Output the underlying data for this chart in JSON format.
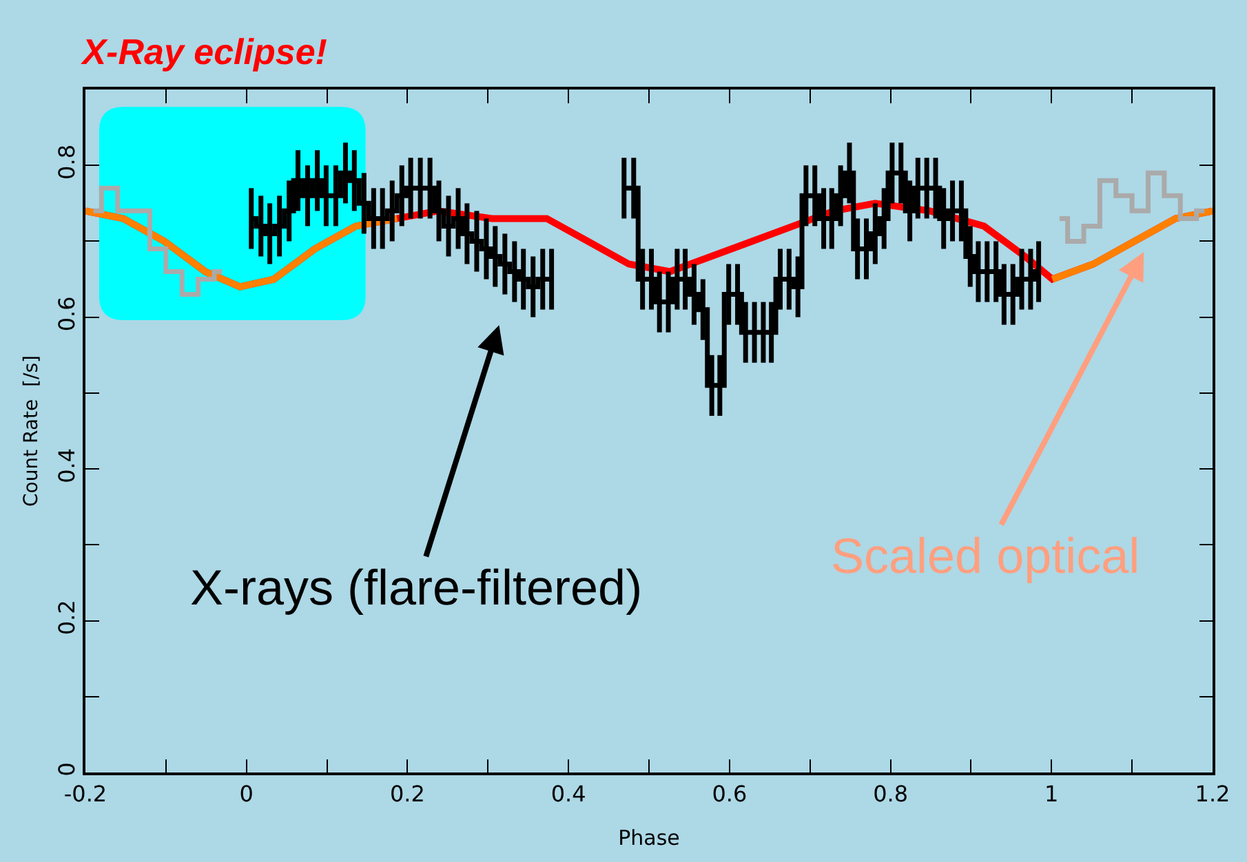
{
  "chart_data": {
    "type": "line",
    "title": "X-Ray eclipse!",
    "xlabel": "Phase",
    "ylabel": "Count Rate  [/s]",
    "xlim": [
      -0.2,
      1.2
    ],
    "ylim": [
      0,
      0.9
    ],
    "xticks": [
      -0.2,
      {
        "value": -0.1,
        "label": null
      },
      0,
      {
        "value": 0.1,
        "label": null
      },
      0.2,
      {
        "value": 0.3,
        "label": null
      },
      0.4,
      {
        "value": 0.5,
        "label": null
      },
      0.6,
      {
        "value": 0.7,
        "label": null
      },
      0.8,
      {
        "value": 0.9,
        "label": null
      },
      1,
      {
        "value": 1.1,
        "label": null
      },
      1.2
    ],
    "yticks": [
      0,
      {
        "value": 0.1,
        "label": null
      },
      0.2,
      {
        "value": 0.3,
        "label": null
      },
      0.4,
      {
        "value": 0.5,
        "label": null
      },
      0.6,
      {
        "value": 0.7,
        "label": null
      },
      0.8
    ],
    "grid": false,
    "series": [
      {
        "color": "#ff0000",
        "x": [
          -0.2,
          -0.153,
          -0.102,
          -0.051,
          -0.008,
          0.034,
          0.085,
          0.136,
          0.187,
          0.238,
          0.305,
          0.373,
          0.424,
          0.475,
          0.526,
          0.577,
          0.628,
          0.679,
          0.73,
          0.781,
          0.849,
          0.916,
          0.967,
          1.001,
          1.052,
          1.103,
          1.154,
          1.2
        ],
        "values": [
          0.74,
          0.73,
          0.7,
          0.66,
          0.64,
          0.65,
          0.69,
          0.72,
          0.73,
          0.74,
          0.73,
          0.73,
          0.7,
          0.67,
          0.66,
          0.68,
          0.7,
          0.72,
          0.74,
          0.75,
          0.74,
          0.72,
          0.68,
          0.65,
          0.67,
          0.7,
          0.73,
          0.74
        ]
      },
      {
        "color": "#ff8000",
        "x": [
          -0.2,
          -0.153,
          -0.102,
          -0.051,
          -0.008,
          0.034,
          0.085,
          0.136,
          0.187,
          null,
          1.001,
          1.052,
          1.103,
          1.154,
          1.2
        ],
        "values": [
          0.74,
          0.73,
          0.7,
          0.66,
          0.64,
          0.65,
          0.69,
          0.72,
          0.73,
          null,
          0.65,
          0.67,
          0.7,
          0.73,
          0.74
        ]
      },
      {
        "type": "step",
        "color": "#aaaaaa",
        "x": [
          -0.19,
          -0.17,
          -0.15,
          -0.13,
          -0.11,
          -0.09,
          -0.07,
          -0.05,
          -0.03,
          0.5,
          1.01,
          1.03,
          1.05,
          1.07,
          1.09,
          1.11,
          1.13,
          1.15,
          1.17,
          1.19
        ],
        "values": [
          0.74,
          0.77,
          0.74,
          0.74,
          0.69,
          0.66,
          0.63,
          0.65,
          0.66,
          null,
          0.73,
          0.7,
          0.72,
          0.78,
          0.76,
          0.74,
          0.79,
          0.76,
          0.73,
          0.74
        ]
      },
      {
        "type": "step",
        "color": "#000000",
        "x": [
          0.006,
          0.018,
          0.029,
          0.041,
          0.053,
          0.064,
          0.076,
          0.088,
          0.099,
          0.111,
          0.123,
          0.134,
          0.146,
          0.158,
          0.169,
          0.181,
          0.193,
          0.204,
          0.216,
          0.228,
          0.239,
          0.251,
          0.263,
          0.274,
          0.286,
          0.298,
          0.309,
          0.321,
          0.333,
          0.344,
          0.356,
          0.368,
          0.379,
          0.42,
          0.469,
          0.481,
          0.492,
          0.503,
          0.513,
          0.524,
          0.535,
          0.545,
          0.556,
          0.567,
          0.578,
          0.588,
          0.599,
          0.61,
          0.62,
          0.631,
          0.642,
          0.652,
          0.663,
          0.674,
          0.685,
          0.695,
          0.706,
          0.717,
          0.727,
          0.738,
          0.749,
          0.759,
          0.77,
          0.781,
          0.792,
          0.802,
          0.813,
          0.824,
          0.834,
          0.845,
          0.856,
          0.866,
          0.877,
          0.888,
          0.899,
          0.909,
          0.92,
          0.931,
          0.941,
          0.952,
          0.963,
          0.974,
          0.984
        ],
        "values": [
          0.73,
          0.72,
          0.71,
          0.72,
          0.74,
          0.78,
          0.76,
          0.78,
          0.76,
          0.76,
          0.79,
          0.78,
          0.75,
          0.73,
          0.73,
          0.74,
          0.76,
          0.77,
          0.77,
          0.77,
          0.74,
          0.72,
          0.73,
          0.71,
          0.7,
          0.69,
          0.68,
          0.67,
          0.66,
          0.65,
          0.64,
          0.65,
          0.65,
          null,
          0.77,
          0.77,
          0.65,
          0.65,
          0.62,
          0.62,
          0.65,
          0.65,
          0.63,
          0.61,
          0.51,
          0.51,
          0.63,
          0.63,
          0.58,
          0.58,
          0.58,
          0.58,
          0.65,
          0.65,
          0.64,
          0.76,
          0.76,
          0.73,
          0.73,
          0.76,
          0.79,
          0.69,
          0.69,
          0.71,
          0.73,
          0.79,
          0.79,
          0.74,
          0.77,
          0.77,
          0.77,
          0.73,
          0.74,
          0.74,
          0.68,
          0.66,
          0.66,
          0.66,
          0.63,
          0.63,
          0.65,
          0.65,
          0.66
        ],
        "errors": [
          0.04,
          0.04,
          0.04,
          0.04,
          0.04,
          0.04,
          0.04,
          0.04,
          0.04,
          0.04,
          0.04,
          0.04,
          0.04,
          0.04,
          0.04,
          0.04,
          0.04,
          0.04,
          0.04,
          0.04,
          0.04,
          0.04,
          0.04,
          0.04,
          0.04,
          0.04,
          0.04,
          0.04,
          0.04,
          0.04,
          0.04,
          0.04,
          0.04,
          null,
          0.04,
          0.04,
          0.04,
          0.04,
          0.04,
          0.04,
          0.04,
          0.04,
          0.04,
          0.04,
          0.04,
          0.04,
          0.04,
          0.04,
          0.04,
          0.04,
          0.04,
          0.04,
          0.04,
          0.04,
          0.04,
          0.04,
          0.04,
          0.04,
          0.04,
          0.04,
          0.04,
          0.04,
          0.04,
          0.04,
          0.04,
          0.04,
          0.04,
          0.04,
          0.04,
          0.04,
          0.04,
          0.04,
          0.04,
          0.04,
          0.04,
          0.04,
          0.04,
          0.04,
          0.04,
          0.04,
          0.04,
          0.04,
          0.04
        ]
      }
    ],
    "annotations": [
      "X-rays (flare-filtered)",
      "Scaled optical"
    ]
  }
}
